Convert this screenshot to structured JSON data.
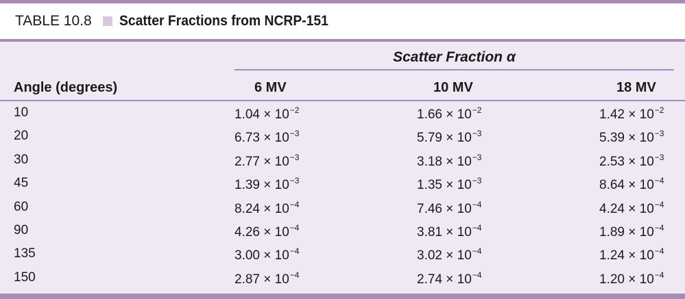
{
  "table": {
    "number": "TABLE 10.8",
    "title": "Scatter Fractions from NCRP-151",
    "group_header": "Scatter Fraction α",
    "columns": [
      "Angle (degrees)",
      "6 MV",
      "10 MV",
      "18 MV"
    ],
    "rows": [
      {
        "angle": "10",
        "mv6": {
          "m": "1.04 × 10",
          "e": "−2"
        },
        "mv10": {
          "m": "1.66 × 10",
          "e": "−2"
        },
        "mv18": {
          "m": "1.42 × 10",
          "e": "−2"
        }
      },
      {
        "angle": "20",
        "mv6": {
          "m": "6.73 × 10",
          "e": "−3"
        },
        "mv10": {
          "m": "5.79 × 10",
          "e": "−3"
        },
        "mv18": {
          "m": "5.39 × 10",
          "e": "−3"
        }
      },
      {
        "angle": "30",
        "mv6": {
          "m": "2.77 × 10",
          "e": "−3"
        },
        "mv10": {
          "m": "3.18 × 10",
          "e": "−3"
        },
        "mv18": {
          "m": "2.53 × 10",
          "e": "−3"
        }
      },
      {
        "angle": "45",
        "mv6": {
          "m": "1.39 × 10",
          "e": "−3"
        },
        "mv10": {
          "m": "1.35 × 10",
          "e": "−3"
        },
        "mv18": {
          "m": "8.64 × 10",
          "e": "−4"
        }
      },
      {
        "angle": "60",
        "mv6": {
          "m": "8.24 × 10",
          "e": "−4"
        },
        "mv10": {
          "m": "7.46 × 10",
          "e": "−4"
        },
        "mv18": {
          "m": "4.24 × 10",
          "e": "−4"
        }
      },
      {
        "angle": "90",
        "mv6": {
          "m": "4.26 × 10",
          "e": "−4"
        },
        "mv10": {
          "m": "3.81 × 10",
          "e": "−4"
        },
        "mv18": {
          "m": "1.89 × 10",
          "e": "−4"
        }
      },
      {
        "angle": "135",
        "mv6": {
          "m": "3.00 × 10",
          "e": "−4"
        },
        "mv10": {
          "m": "3.02 × 10",
          "e": "−4"
        },
        "mv18": {
          "m": "1.24 × 10",
          "e": "−4"
        }
      },
      {
        "angle": "150",
        "mv6": {
          "m": "2.87 × 10",
          "e": "−4"
        },
        "mv10": {
          "m": "2.74 × 10",
          "e": "−4"
        },
        "mv18": {
          "m": "1.20 × 10",
          "e": "−4"
        }
      }
    ]
  },
  "colors": {
    "rule": "#a98bb8",
    "body_bg": "#efe9f3",
    "title_square": "#d6c8e0"
  }
}
